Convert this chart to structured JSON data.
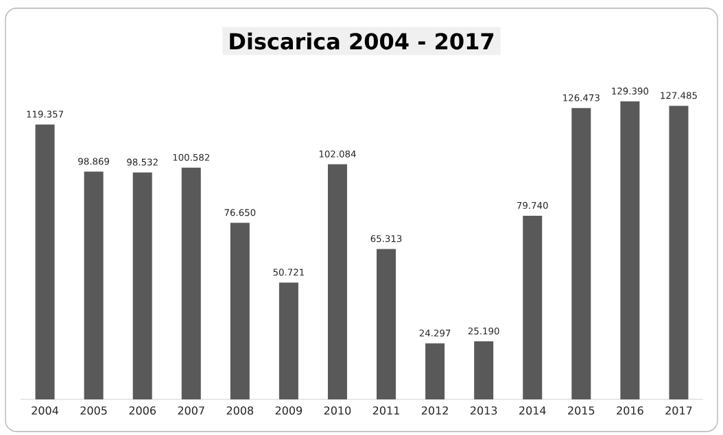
{
  "chart_data": {
    "type": "bar",
    "title": "Discarica 2004 - 2017",
    "categories": [
      "2004",
      "2005",
      "2006",
      "2007",
      "2008",
      "2009",
      "2010",
      "2011",
      "2012",
      "2013",
      "2014",
      "2015",
      "2016",
      "2017"
    ],
    "values": [
      119357,
      98869,
      98532,
      100582,
      76650,
      50721,
      102084,
      65313,
      24297,
      25190,
      79740,
      126473,
      129390,
      127485
    ],
    "value_labels": [
      "119.357",
      "98.869",
      "98.532",
      "100.582",
      "76.650",
      "50.721",
      "102.084",
      "65.313",
      "24.297",
      "25.190",
      "79.740",
      "126.473",
      "129.390",
      "127.485"
    ],
    "color": "#595959"
  }
}
